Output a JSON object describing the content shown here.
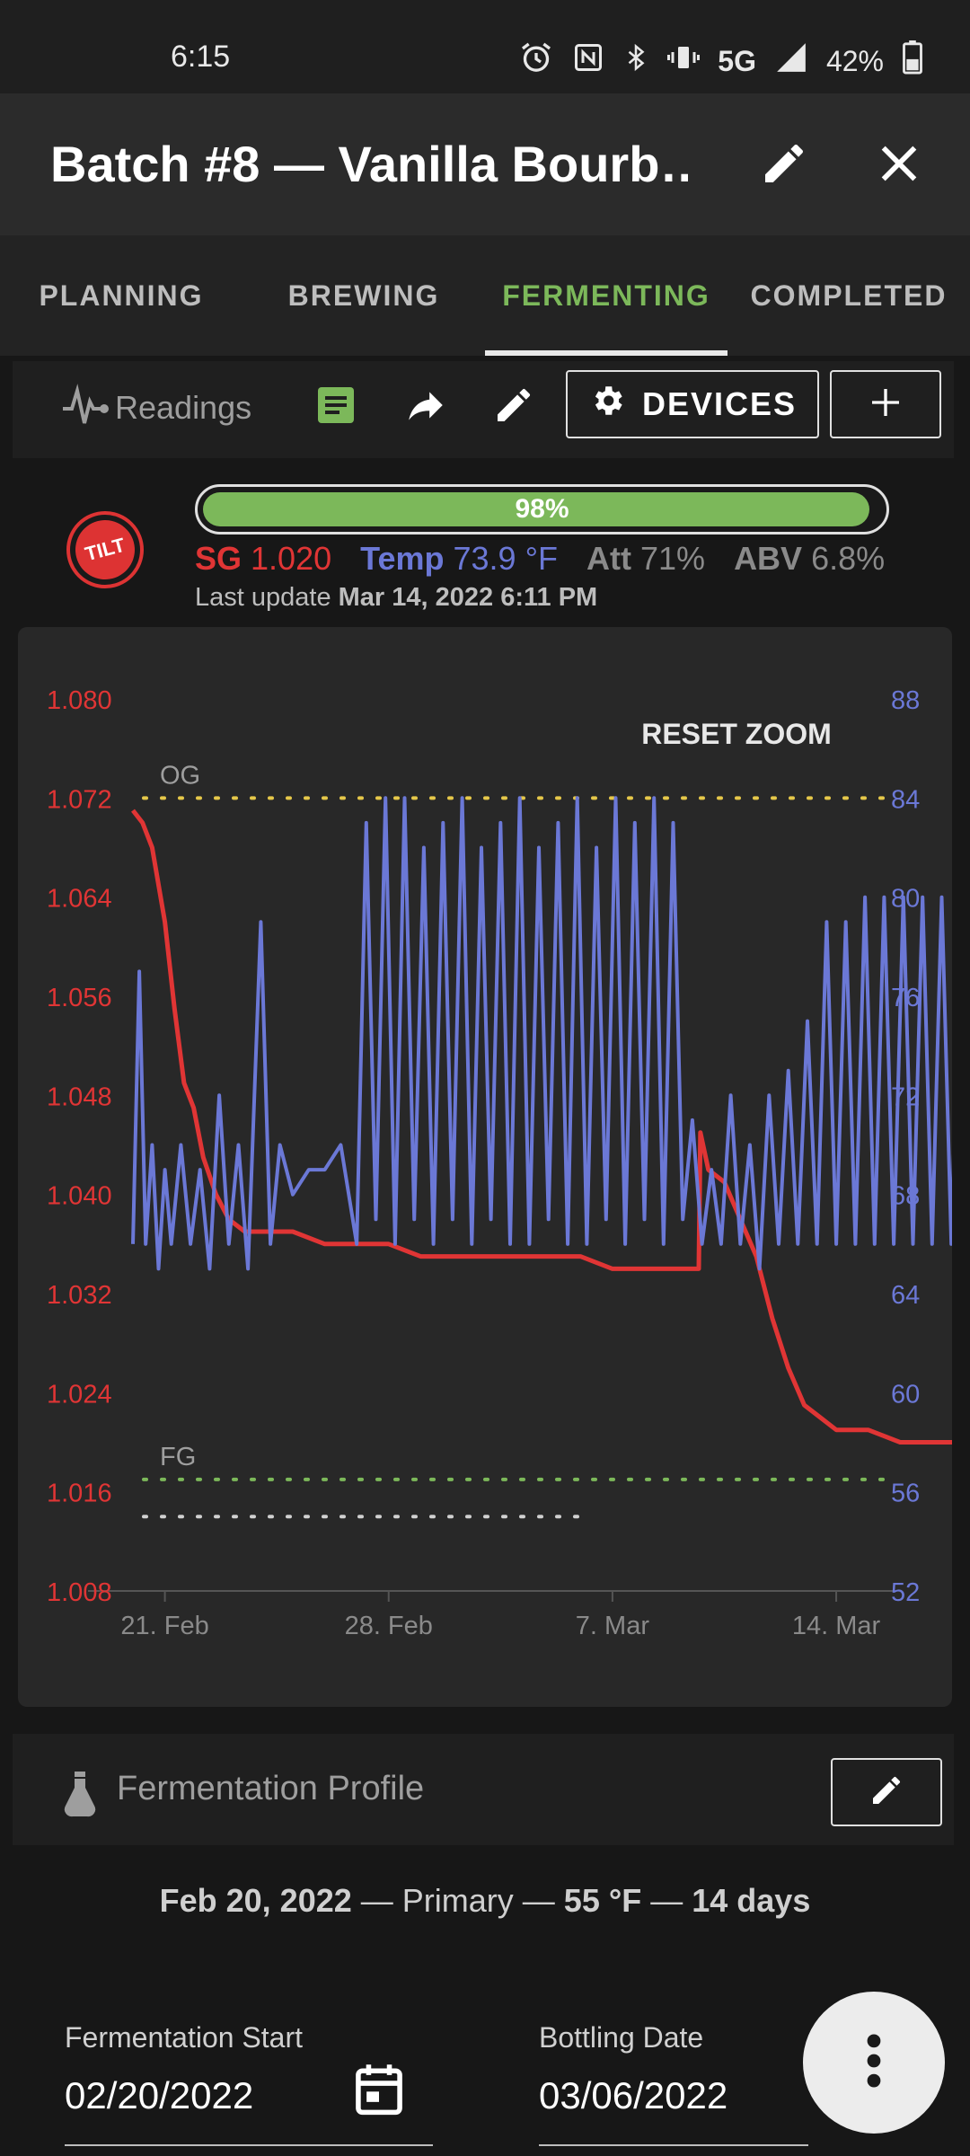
{
  "status_bar": {
    "time": "6:15",
    "network": "5G",
    "battery": "42%"
  },
  "app_bar": {
    "title": "Batch #8 — Vanilla Bourb…"
  },
  "tabs": [
    {
      "label": "PLANNING"
    },
    {
      "label": "BREWING"
    },
    {
      "label": "FERMENTING"
    },
    {
      "label": "COMPLETED"
    }
  ],
  "toolbar": {
    "readings_label": "Readings",
    "devices_label": "DEVICES"
  },
  "tilt": {
    "logo_text": "TILT",
    "progress": 0.98,
    "progress_label": "98%",
    "sg_label": "SG",
    "sg_value": "1.020",
    "temp_label": "Temp",
    "temp_value": "73.9 °F",
    "att_label": "Att",
    "att_value": "71%",
    "abv_label": "ABV",
    "abv_value": "6.8%",
    "last_update_label": "Last update",
    "last_update_value": "Mar 14, 2022 6:11 PM"
  },
  "chart_data": {
    "type": "line",
    "reset_zoom_label": "RESET ZOOM",
    "x_ticks": [
      "21. Feb",
      "28. Feb",
      "7. Mar",
      "14. Mar"
    ],
    "x_range": [
      "2022-02-20",
      "2022-03-14"
    ],
    "y_left": {
      "ticks": [
        "1.080",
        "1.072",
        "1.064",
        "1.056",
        "1.048",
        "1.040",
        "1.032",
        "1.024",
        "1.016",
        "1.008"
      ],
      "range": [
        1.008,
        1.08
      ],
      "color": "#e03535"
    },
    "y_right": {
      "ticks": [
        "88",
        "84",
        "80",
        "76",
        "72",
        "68",
        "64",
        "60",
        "56",
        "52"
      ],
      "range": [
        52,
        88
      ],
      "color": "#6b78d6"
    },
    "reference_lines": [
      {
        "label": "OG",
        "value": 1.072,
        "color": "#e6c84a"
      },
      {
        "label": "FG",
        "value": 1.017,
        "color": "#7cb85a"
      },
      {
        "label": "",
        "value": 1.014,
        "color": "#d0d0d0",
        "x_end": "2022-03-06"
      }
    ],
    "series": [
      {
        "axis": "left",
        "color": "#e03535",
        "x": [
          20.0,
          20.3,
          20.6,
          21.0,
          21.3,
          21.6,
          21.9,
          22.2,
          22.6,
          23.0,
          23.5,
          24.0,
          25.0,
          26.0,
          27.0,
          28.0,
          29.0,
          30.0,
          31.0,
          32.0,
          33.0,
          34.0,
          35.0,
          36.0,
          37.0,
          37.7,
          37.75,
          38.0,
          38.5,
          39.0,
          39.5,
          40.0,
          40.5,
          41.0,
          41.5,
          42.0,
          43.0,
          44.0,
          45.0,
          46.0,
          47.0,
          48.0,
          49.0,
          50.0,
          51.0,
          52.0,
          53.0,
          54.0,
          55.0,
          56.0,
          57.0,
          58.0
        ],
        "y": [
          1.071,
          1.07,
          1.068,
          1.062,
          1.055,
          1.049,
          1.047,
          1.043,
          1.04,
          1.038,
          1.037,
          1.037,
          1.037,
          1.036,
          1.036,
          1.036,
          1.035,
          1.035,
          1.035,
          1.035,
          1.035,
          1.035,
          1.034,
          1.034,
          1.034,
          1.034,
          1.045,
          1.042,
          1.041,
          1.038,
          1.035,
          1.03,
          1.026,
          1.023,
          1.022,
          1.021,
          1.021,
          1.02,
          1.02,
          1.02,
          1.02,
          1.02,
          1.02,
          1.02,
          1.02,
          1.02,
          1.02,
          1.02,
          1.02,
          1.02,
          1.02,
          1.02
        ]
      },
      {
        "axis": "right",
        "color": "#6b78d6",
        "x": [
          20.0,
          20.2,
          20.4,
          20.6,
          20.8,
          21.0,
          21.2,
          21.5,
          21.8,
          22.1,
          22.4,
          22.7,
          23.0,
          23.3,
          23.6,
          24.0,
          24.3,
          24.6,
          25.0,
          25.5,
          26.0,
          26.5,
          27.0,
          27.3,
          27.6,
          27.9,
          28.2,
          28.5,
          28.8,
          29.1,
          29.4,
          29.7,
          30.0,
          30.3,
          30.6,
          30.9,
          31.2,
          31.5,
          31.8,
          32.1,
          32.4,
          32.7,
          33.0,
          33.3,
          33.6,
          33.9,
          34.2,
          34.5,
          34.8,
          35.1,
          35.4,
          35.7,
          36.0,
          36.3,
          36.6,
          36.9,
          37.2,
          37.5,
          37.8,
          38.1,
          38.4,
          38.7,
          39.0,
          39.3,
          39.6,
          39.9,
          40.2,
          40.5,
          40.8,
          41.1,
          41.4,
          41.7,
          42.0,
          42.3,
          42.6,
          42.9,
          43.2,
          43.5,
          43.8,
          44.1,
          44.4,
          44.7,
          45.0,
          45.3,
          45.6,
          45.9,
          46.2,
          46.5,
          46.8,
          47.1
        ],
        "y": [
          66,
          77,
          66,
          70,
          65,
          69,
          66,
          70,
          66,
          69,
          65,
          72,
          66,
          70,
          65,
          79,
          66,
          70,
          68,
          69,
          69,
          70,
          66,
          83,
          67,
          84,
          66,
          84,
          67,
          82,
          66,
          83,
          67,
          84,
          66,
          82,
          67,
          83,
          66,
          84,
          66,
          82,
          67,
          83,
          66,
          84,
          66,
          82,
          67,
          84,
          66,
          83,
          67,
          84,
          66,
          83,
          67,
          71,
          66,
          69,
          66,
          72,
          66,
          70,
          65,
          72,
          66,
          73,
          66,
          75,
          66,
          79,
          66,
          79,
          66,
          80,
          66,
          80,
          66,
          80,
          66,
          80,
          66,
          80,
          66,
          80,
          66,
          80,
          66,
          83
        ]
      }
    ]
  },
  "profile": {
    "title": "Fermentation Profile"
  },
  "stage": {
    "date": "Feb 20, 2022",
    "name": "Primary",
    "temp": "55 °F",
    "duration": "14 days",
    "sep": " — "
  },
  "fields": {
    "start_label": "Fermentation Start",
    "start_value": "02/20/2022",
    "bottling_label": "Bottling Date",
    "bottling_value": "03/06/2022"
  }
}
